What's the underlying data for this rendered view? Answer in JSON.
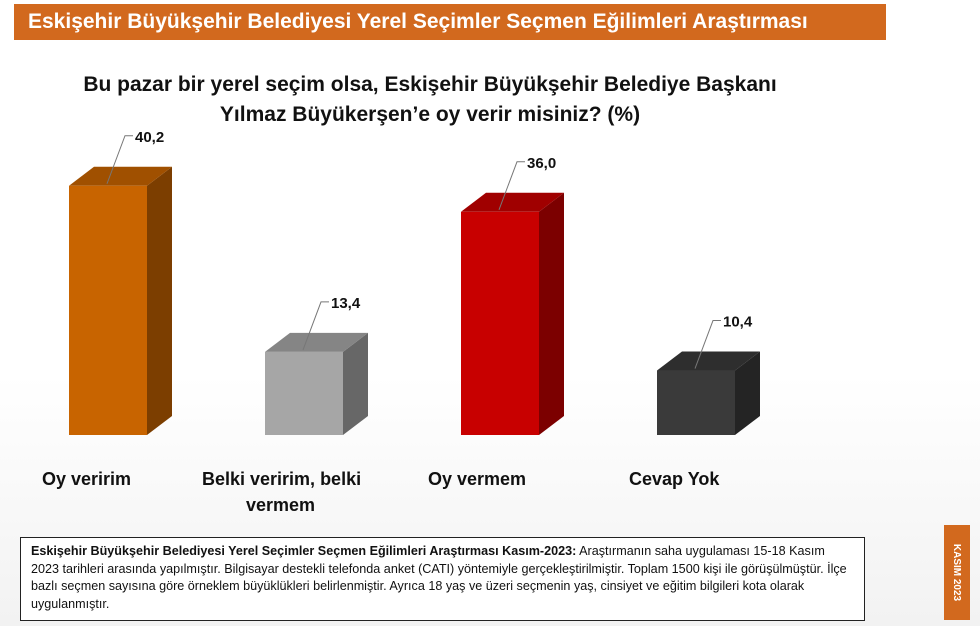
{
  "header": {
    "title": "Eskişehir Büyükşehir Belediyesi Yerel Seçimler Seçmen Eğilimleri Araştırması"
  },
  "chart_data": {
    "type": "bar",
    "title_line1": "Bu pazar bir yerel seçim olsa, Eskişehir Büyükşehir Belediye Başkanı",
    "title_line2": "Yılmaz Büyükerşen’e oy verir misiniz? (%)",
    "categories": [
      "Oy veririm",
      "Belki veririm, belki vermem",
      "Oy vermem",
      "Cevap Yok"
    ],
    "values": [
      40.2,
      13.4,
      36.0,
      10.4
    ],
    "value_labels": [
      "40,2",
      "13,4",
      "36,0",
      "10,4"
    ],
    "colors": [
      "#c86400",
      "#a6a6a6",
      "#c80000",
      "#3a3a3a"
    ],
    "ylim": [
      0,
      45
    ],
    "grid": false,
    "legend": "none"
  },
  "category_labels": {
    "c0": "Oy veririm",
    "c1_line1": "Belki veririm, belki",
    "c1_line2": "vermem",
    "c2": "Oy vermem",
    "c3": "Cevap Yok"
  },
  "note": {
    "bold": "Eskişehir Büyükşehir Belediyesi Yerel Seçimler Seçmen Eğilimleri Araştırması Kasım-2023:",
    "text": " Araştırmanın saha uygulaması 15-18 Kasım 2023 tarihleri arasında yapılmıştır. Bilgisayar destekli telefonda anket (CATI) yöntemiyle gerçekleştirilmiştir. Toplam 1500 kişi ile görüşülmüştür. İlçe bazlı seçmen sayısına göre örneklem büyüklükleri belirlenmiştir. Ayrıca 18 yaş ve üzeri seçmenin yaş, cinsiyet ve eğitim bilgileri kota olarak uygulanmıştır."
  },
  "side_tag": {
    "label": "KASIM 2023"
  }
}
